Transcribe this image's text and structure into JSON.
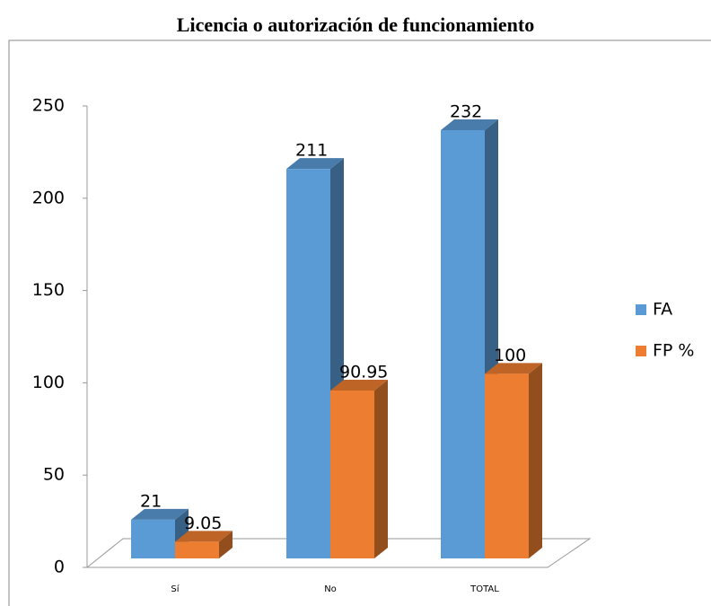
{
  "chart_data": {
    "type": "bar3d",
    "title": "Licencia o autorización de funcionamiento",
    "categories": [
      "Sí",
      "No",
      "TOTAL"
    ],
    "series": [
      {
        "name": "FA",
        "color": "#5b9bd5",
        "values": [
          21,
          211,
          232
        ]
      },
      {
        "name": "FP %",
        "color": "#ed7d31",
        "values": [
          9.05,
          90.95,
          100
        ]
      }
    ],
    "ylim": [
      0,
      250
    ],
    "yticks": [
      0,
      50,
      100,
      150,
      200,
      250
    ],
    "legend": "right"
  }
}
